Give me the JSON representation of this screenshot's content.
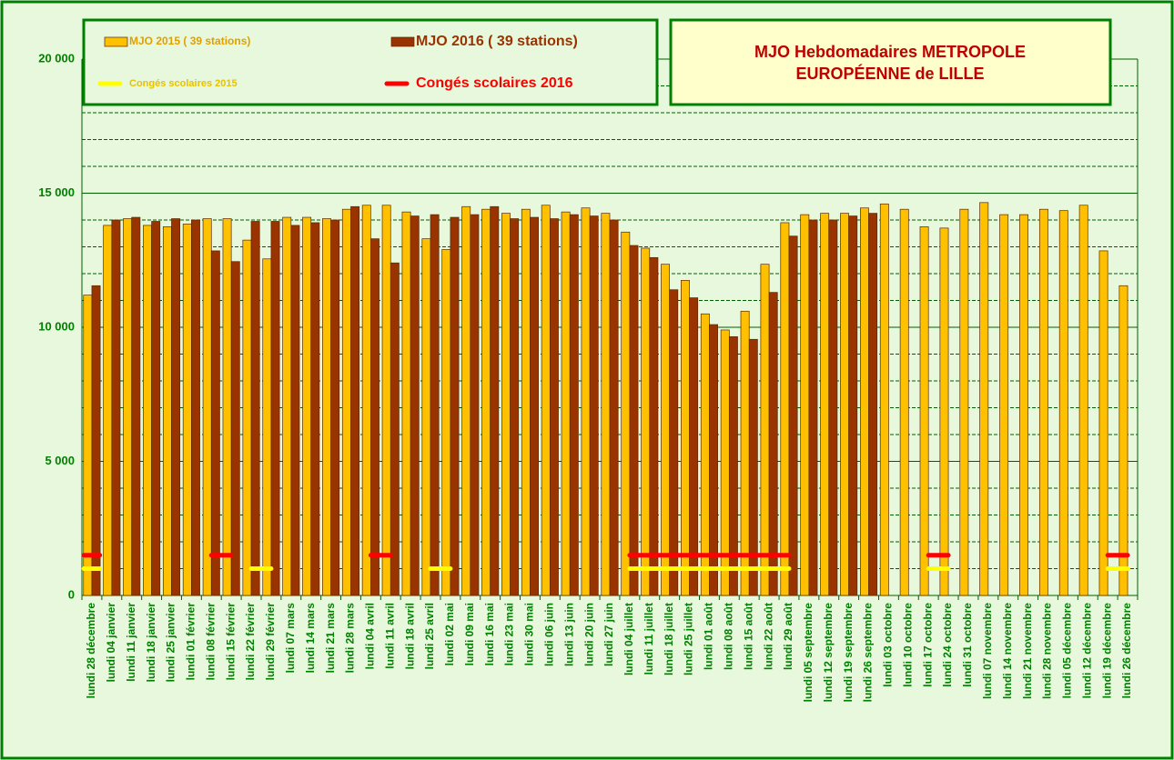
{
  "chart_data": {
    "type": "bar",
    "title": [
      "MJO Hebdomadaires  METROPOLE",
      "EUROPÉENNE de LILLE"
    ],
    "categories": [
      "lundi 28 décembre",
      "lundi 04 janvier",
      "lundi 11 janvier",
      "lundi 18 janvier",
      "lundi 25 janvier",
      "lundi 01 février",
      "lundi 08 février",
      "lundi 15 février",
      "lundi 22 février",
      "lundi 29 février",
      "lundi 07 mars",
      "lundi 14 mars",
      "lundi 21 mars",
      "lundi 28 mars",
      "lundi 04 avril",
      "lundi 11 avril",
      "lundi 18 avril",
      "lundi 25 avril",
      "lundi 02 mai",
      "lundi 09 mai",
      "lundi 16 mai",
      "lundi 23 mai",
      "lundi 30 mai",
      "lundi 06 juin",
      "lundi 13 juin",
      "lundi 20 juin",
      "lundi 27 juin",
      "lundi 04 juillet",
      "lundi 11 juillet",
      "lundi 18 juillet",
      "lundi 25 juillet",
      "lundi 01 août",
      "lundi 08 août",
      "lundi 15 août",
      "lundi 22 août",
      "lundi 29 août",
      "lundi 05 septembre",
      "lundi 12 septembre",
      "lundi 19 septembre",
      "lundi 26 septembre",
      "lundi 03 octobre",
      "lundi 10 octobre",
      "lundi 17 octobre",
      "lundi 24 octobre",
      "lundi 31 octobre",
      "lundi 07 novembre",
      "lundi 14 novembre",
      "lundi 21 novembre",
      "lundi 28 novembre",
      "lundi 05 décembre",
      "lundi 12 décembre",
      "lundi 19 décembre",
      "lundi 26 décembre"
    ],
    "series": [
      {
        "name": "MJO  2015 ( 39 stations)",
        "type": "bar",
        "color": "#ffc000",
        "values": [
          11200,
          13800,
          14050,
          13800,
          13750,
          13850,
          14050,
          14050,
          13250,
          12550,
          14100,
          14100,
          14050,
          14400,
          14550,
          14550,
          14300,
          13300,
          12900,
          14500,
          14400,
          14250,
          14400,
          14550,
          14300,
          14450,
          14250,
          13550,
          12950,
          12350,
          11750,
          10500,
          9900,
          10600,
          12350,
          13900,
          14200,
          14250,
          14250,
          14450,
          14600,
          14400,
          13750,
          13700,
          14400,
          14650,
          14200,
          14200,
          14400,
          14350,
          14550,
          12850,
          11550
        ]
      },
      {
        "name": "MJO  2016 ( 39 stations)",
        "type": "bar",
        "color": "#993300",
        "values": [
          11550,
          14000,
          14100,
          13950,
          14050,
          14000,
          12850,
          12450,
          13950,
          13950,
          13800,
          13900,
          14000,
          14500,
          13300,
          12400,
          14150,
          14200,
          14100,
          14200,
          14500,
          14050,
          14100,
          14050,
          14200,
          14150,
          14000,
          13050,
          12600,
          11400,
          11100,
          10100,
          9650,
          9550,
          11300,
          13400,
          14000,
          14000,
          14150,
          14250,
          null,
          null,
          null,
          null,
          null,
          null,
          null,
          null,
          null,
          null,
          null,
          null,
          null
        ]
      },
      {
        "name": "Congés scolaires 2015",
        "type": "line",
        "color": "#ffff00",
        "values": [
          1000,
          null,
          null,
          null,
          null,
          null,
          null,
          null,
          1000,
          1000,
          null,
          null,
          null,
          null,
          null,
          null,
          null,
          1000,
          1000,
          null,
          null,
          null,
          null,
          null,
          null,
          null,
          null,
          1000,
          1000,
          1000,
          1000,
          1000,
          1000,
          1000,
          1000,
          1000,
          null,
          null,
          null,
          null,
          null,
          null,
          1000,
          1000,
          null,
          null,
          null,
          null,
          null,
          null,
          null,
          1000,
          1000
        ]
      },
      {
        "name": "Congés scolaires 2016",
        "type": "line",
        "color": "#ff0000",
        "values": [
          1500,
          null,
          null,
          null,
          null,
          null,
          1500,
          1500,
          null,
          null,
          null,
          null,
          null,
          null,
          1500,
          1500,
          null,
          null,
          null,
          null,
          null,
          null,
          null,
          null,
          null,
          null,
          null,
          1500,
          1500,
          1500,
          1500,
          1500,
          1500,
          1500,
          1500,
          1500,
          null,
          null,
          null,
          null,
          null,
          null,
          1500,
          1500,
          null,
          null,
          null,
          null,
          null,
          null,
          null,
          1500,
          1500
        ]
      }
    ],
    "ylim": [
      0,
      20000
    ],
    "yticks": [
      {
        "value": 0,
        "label": "0"
      },
      {
        "value": 5000,
        "label": "5 000"
      },
      {
        "value": 10000,
        "label": "10 000"
      },
      {
        "value": 15000,
        "label": "15 000"
      },
      {
        "value": 20000,
        "label": "20 000"
      }
    ],
    "yminorticks": [
      1000,
      2000,
      3000,
      4000,
      6000,
      7000,
      8000,
      9000,
      11000,
      12000,
      13000,
      14000,
      16000,
      17000,
      18000,
      19000
    ],
    "grid": true
  }
}
